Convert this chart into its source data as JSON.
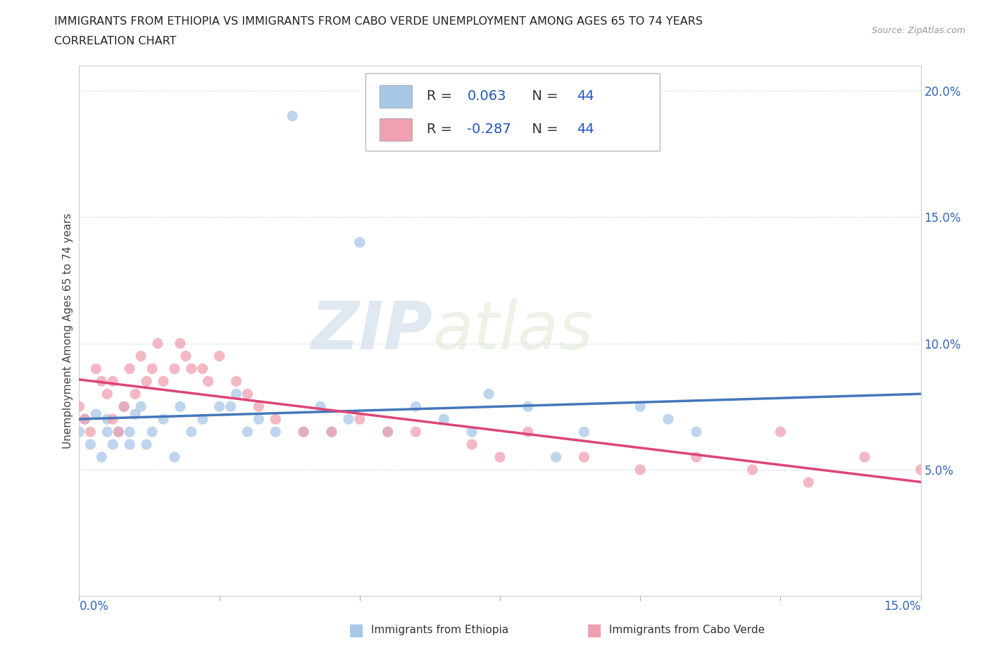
{
  "title_line1": "IMMIGRANTS FROM ETHIOPIA VS IMMIGRANTS FROM CABO VERDE UNEMPLOYMENT AMONG AGES 65 TO 74 YEARS",
  "title_line2": "CORRELATION CHART",
  "source": "Source: ZipAtlas.com",
  "ylabel": "Unemployment Among Ages 65 to 74 years",
  "xlim": [
    0.0,
    0.15
  ],
  "ylim": [
    0.0,
    0.21
  ],
  "yticks": [
    0.05,
    0.1,
    0.15,
    0.2
  ],
  "color_ethiopia": "#a8c8e8",
  "color_cabo_verde": "#f0a0b0",
  "color_line_ethiopia": "#4477bb",
  "color_line_cabo_verde": "#dd4477",
  "watermark_zip": "ZIP",
  "watermark_atlas": "atlas",
  "ethiopia_x": [
    0.0,
    0.001,
    0.002,
    0.003,
    0.004,
    0.005,
    0.005,
    0.006,
    0.007,
    0.008,
    0.009,
    0.009,
    0.01,
    0.011,
    0.012,
    0.013,
    0.015,
    0.017,
    0.018,
    0.02,
    0.022,
    0.025,
    0.027,
    0.028,
    0.03,
    0.032,
    0.035,
    0.038,
    0.04,
    0.043,
    0.045,
    0.048,
    0.05,
    0.055,
    0.06,
    0.065,
    0.07,
    0.073,
    0.08,
    0.085,
    0.09,
    0.1,
    0.105,
    0.11
  ],
  "ethiopia_y": [
    0.065,
    0.07,
    0.06,
    0.072,
    0.055,
    0.07,
    0.065,
    0.06,
    0.065,
    0.075,
    0.065,
    0.06,
    0.072,
    0.075,
    0.06,
    0.065,
    0.07,
    0.055,
    0.075,
    0.065,
    0.07,
    0.075,
    0.075,
    0.08,
    0.065,
    0.07,
    0.065,
    0.19,
    0.065,
    0.075,
    0.065,
    0.07,
    0.14,
    0.065,
    0.075,
    0.07,
    0.065,
    0.08,
    0.075,
    0.055,
    0.065,
    0.075,
    0.07,
    0.065
  ],
  "cabo_x": [
    0.0,
    0.001,
    0.002,
    0.003,
    0.004,
    0.005,
    0.006,
    0.006,
    0.007,
    0.008,
    0.009,
    0.01,
    0.011,
    0.012,
    0.013,
    0.014,
    0.015,
    0.017,
    0.018,
    0.019,
    0.02,
    0.022,
    0.023,
    0.025,
    0.028,
    0.03,
    0.032,
    0.035,
    0.04,
    0.045,
    0.05,
    0.055,
    0.06,
    0.07,
    0.075,
    0.08,
    0.09,
    0.1,
    0.11,
    0.12,
    0.125,
    0.13,
    0.14,
    0.15
  ],
  "cabo_y": [
    0.075,
    0.07,
    0.065,
    0.09,
    0.085,
    0.08,
    0.085,
    0.07,
    0.065,
    0.075,
    0.09,
    0.08,
    0.095,
    0.085,
    0.09,
    0.1,
    0.085,
    0.09,
    0.1,
    0.095,
    0.09,
    0.09,
    0.085,
    0.095,
    0.085,
    0.08,
    0.075,
    0.07,
    0.065,
    0.065,
    0.07,
    0.065,
    0.065,
    0.06,
    0.055,
    0.065,
    0.055,
    0.05,
    0.055,
    0.05,
    0.065,
    0.045,
    0.055,
    0.05
  ]
}
